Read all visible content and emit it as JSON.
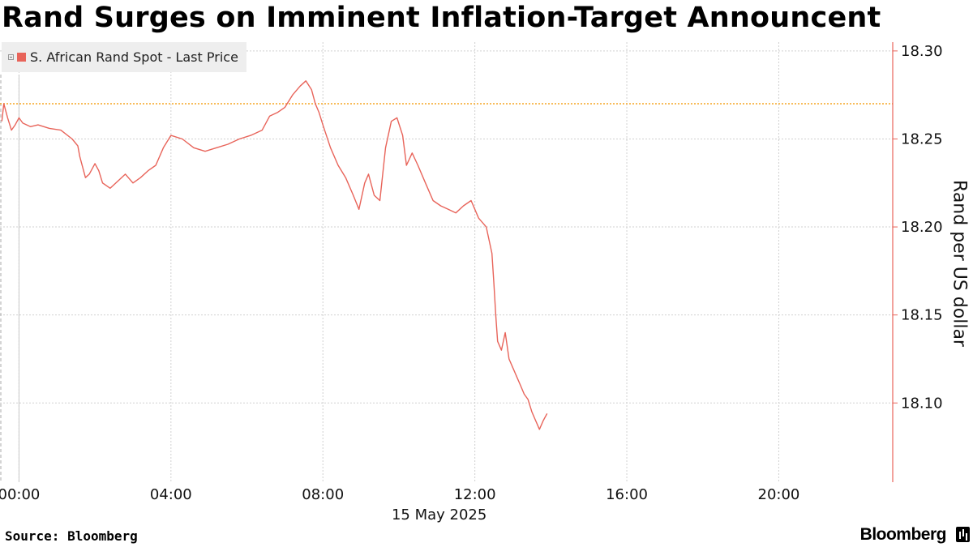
{
  "title": "Rand Surges on Imminent Inflation-Target Announcent",
  "source": "Source: Bloomberg",
  "brand": "Bloomberg",
  "colors": {
    "series": "#e8645a",
    "reference_line": "#f5a623",
    "grid": "#d0d0d0",
    "axis": "#e8645a"
  },
  "chart_data": {
    "type": "line",
    "ylabel": "Rand per US dollar",
    "ylim": [
      18.055,
      18.305
    ],
    "yticks": [
      18.1,
      18.15,
      18.2,
      18.25,
      18.3
    ],
    "ytick_labels": [
      "18.10",
      "18.15",
      "18.20",
      "18.25",
      "18.30"
    ],
    "xlim_hours": [
      -0.5,
      23.0
    ],
    "xticks_hours": [
      0,
      4,
      8,
      12,
      16,
      20
    ],
    "xtick_labels": [
      "00:00",
      "04:00",
      "08:00",
      "12:00",
      "16:00",
      "20:00"
    ],
    "date_label": "15 May 2025",
    "reference_line": 18.27,
    "grid": true,
    "legend_position": "top-left",
    "series": [
      {
        "name": "S. African Rand Spot - Last Price",
        "x_hours": [
          -0.45,
          -0.4,
          -0.3,
          -0.2,
          -0.1,
          0.0,
          0.1,
          0.3,
          0.5,
          0.8,
          1.1,
          1.4,
          1.55,
          1.6,
          1.75,
          1.85,
          1.95,
          2.0,
          2.1,
          2.2,
          2.4,
          2.6,
          2.8,
          3.0,
          3.2,
          3.4,
          3.6,
          3.8,
          4.0,
          4.3,
          4.6,
          4.9,
          5.2,
          5.5,
          5.8,
          6.1,
          6.4,
          6.6,
          6.8,
          7.0,
          7.2,
          7.4,
          7.55,
          7.7,
          7.8,
          7.9,
          8.0,
          8.2,
          8.4,
          8.6,
          8.8,
          8.95,
          9.1,
          9.2,
          9.35,
          9.5,
          9.65,
          9.8,
          9.95,
          10.1,
          10.2,
          10.35,
          10.5,
          10.7,
          10.9,
          11.1,
          11.3,
          11.5,
          11.7,
          11.9,
          12.1,
          12.3,
          12.45,
          12.5,
          12.55,
          12.6,
          12.7,
          12.8,
          12.9,
          13.0,
          13.1,
          13.2,
          13.3,
          13.4,
          13.5,
          13.6,
          13.7,
          13.8,
          13.9
        ],
        "values": [
          18.26,
          18.27,
          18.262,
          18.255,
          18.258,
          18.262,
          18.259,
          18.257,
          18.258,
          18.256,
          18.255,
          18.25,
          18.246,
          18.24,
          18.228,
          18.23,
          18.234,
          18.236,
          18.232,
          18.225,
          18.222,
          18.226,
          18.23,
          18.225,
          18.228,
          18.232,
          18.235,
          18.245,
          18.252,
          18.25,
          18.245,
          18.243,
          18.245,
          18.247,
          18.25,
          18.252,
          18.255,
          18.263,
          18.265,
          18.268,
          18.275,
          18.28,
          18.283,
          18.278,
          18.27,
          18.265,
          18.258,
          18.245,
          18.235,
          18.228,
          18.218,
          18.21,
          18.225,
          18.23,
          18.218,
          18.215,
          18.245,
          18.26,
          18.262,
          18.252,
          18.235,
          18.242,
          18.235,
          18.225,
          18.215,
          18.212,
          18.21,
          18.208,
          18.212,
          18.215,
          18.205,
          18.2,
          18.185,
          18.168,
          18.15,
          18.135,
          18.13,
          18.14,
          18.125,
          18.12,
          18.115,
          18.11,
          18.105,
          18.102,
          18.095,
          18.09,
          18.085,
          18.09,
          18.094
        ]
      }
    ]
  }
}
